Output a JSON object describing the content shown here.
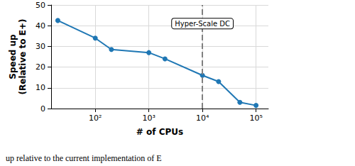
{
  "chart_data": {
    "type": "line",
    "x_label": "# of CPUs",
    "y_label": "Speed up\n(Relative to E+)",
    "x": [
      20,
      100,
      200,
      1000,
      2000,
      10000,
      20000,
      50000,
      100000
    ],
    "values": [
      42.5,
      34,
      28.5,
      27,
      24,
      16,
      13,
      3,
      1.5
    ],
    "color": "#1f77b4",
    "marker": "circle",
    "log": "x",
    "xlim": [
      15,
      170000
    ],
    "xticks": [
      {
        "value": 100,
        "label": "10²"
      },
      {
        "value": 1000,
        "label": "10³"
      },
      {
        "value": 10000,
        "label": "10⁴"
      },
      {
        "value": 100000,
        "label": "10⁵"
      }
    ],
    "ylim": [
      0,
      50
    ],
    "yticks": [
      0,
      10,
      20,
      30,
      40,
      50
    ],
    "grid": true,
    "annotations": [
      {
        "x": 10000,
        "y": 41,
        "text": "Hyper-Scale DC",
        "line_style": "dashed",
        "color": "#808080"
      }
    ],
    "caption": "up relative to the current implementation of E"
  }
}
